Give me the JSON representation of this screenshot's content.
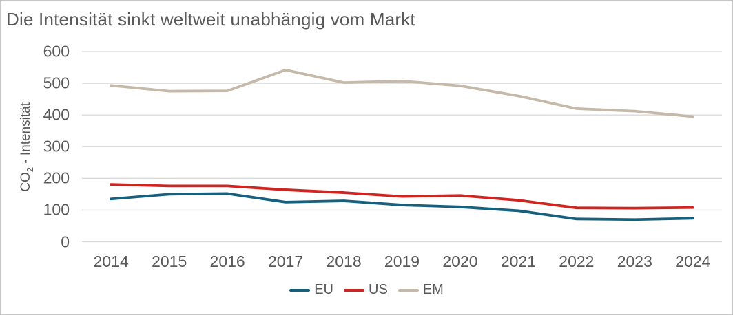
{
  "title": "Die Intensität sinkt weltweit unabhängig vom Markt",
  "chart_data": {
    "type": "line",
    "title": "Die Intensität sinkt weltweit unabhängig vom Markt",
    "x": [
      "2014",
      "2015",
      "2016",
      "2017",
      "2018",
      "2019",
      "2020",
      "2021",
      "2022",
      "2023",
      "2024"
    ],
    "series": [
      {
        "name": "EU",
        "color": "#16607E",
        "values": [
          135,
          150,
          152,
          125,
          129,
          116,
          110,
          98,
          72,
          70,
          74
        ]
      },
      {
        "name": "US",
        "color": "#D02420",
        "values": [
          181,
          176,
          176,
          164,
          155,
          143,
          146,
          131,
          107,
          106,
          108
        ]
      },
      {
        "name": "EM",
        "color": "#C5BAAA",
        "values": [
          493,
          475,
          476,
          542,
          502,
          507,
          492,
          460,
          420,
          412,
          395
        ]
      }
    ],
    "xlabel": "",
    "ylabel": {
      "prefix": "CO",
      "sub": "2",
      "suffix": " - Intensität"
    },
    "yticks": [
      0,
      100,
      200,
      300,
      400,
      500,
      600
    ],
    "ylim": [
      0,
      600
    ],
    "grid": "horizontal",
    "legend_position": "bottom",
    "colors": {
      "text": "#595959",
      "gridline": "#D9D9D9",
      "frame_border": "#C9C9C9",
      "background": "#FFFFFF"
    }
  }
}
